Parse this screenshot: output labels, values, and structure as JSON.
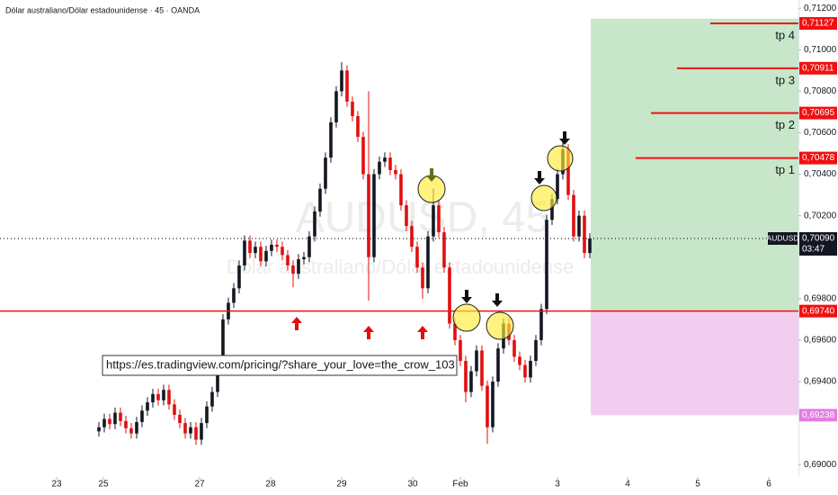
{
  "chart_data": {
    "type": "candlestick",
    "title": "Dólar australiano/Dólar estadounidense · 45 · OANDA",
    "watermark": "AUDUSD, 45",
    "watermark_subtitle": "Dólar australiano/Dólar estadounidense",
    "annotation": "https://es.tradingview.com/pricing/?share_your_love=the_crow_103",
    "up_color": "#131722",
    "down_color": "#e01010",
    "ylim": [
      0.6894,
      0.7124
    ],
    "yticks": [
      {
        "value": 0.712,
        "label": "0,71200"
      },
      {
        "value": 0.71,
        "label": "0,71000"
      },
      {
        "value": 0.708,
        "label": "0,70800"
      },
      {
        "value": 0.706,
        "label": "0,70600"
      },
      {
        "value": 0.704,
        "label": "0,70400"
      },
      {
        "value": 0.702,
        "label": "0,70200"
      },
      {
        "value": 0.698,
        "label": "0,69800"
      },
      {
        "value": 0.696,
        "label": "0,69600"
      },
      {
        "value": 0.694,
        "label": "0,69400"
      },
      {
        "value": 0.69,
        "label": "0,69000"
      }
    ],
    "xlim": [
      -18.33,
      129.67
    ],
    "xticks": [
      {
        "value": -7.83,
        "label": "23"
      },
      {
        "value": 0.83,
        "label": "25"
      },
      {
        "value": 18.67,
        "label": "27"
      },
      {
        "value": 31.83,
        "label": "28"
      },
      {
        "value": 45,
        "label": "29"
      },
      {
        "value": 58.17,
        "label": "30"
      },
      {
        "value": 67,
        "label": "Feb"
      },
      {
        "value": 85,
        "label": "3"
      },
      {
        "value": 98,
        "label": "4"
      },
      {
        "value": 111,
        "label": "5"
      },
      {
        "value": 124.17,
        "label": "6"
      }
    ],
    "candles": [
      [
        0.6916,
        0.69205,
        0.69135,
        0.6918
      ],
      [
        0.6918,
        0.69245,
        0.69155,
        0.6922
      ],
      [
        0.6922,
        0.69245,
        0.6917,
        0.69195
      ],
      [
        0.69195,
        0.69275,
        0.6917,
        0.6925
      ],
      [
        0.6925,
        0.69275,
        0.69185,
        0.6921
      ],
      [
        0.6921,
        0.69235,
        0.6915,
        0.69175
      ],
      [
        0.69175,
        0.692,
        0.69125,
        0.6915
      ],
      [
        0.6915,
        0.6923,
        0.69125,
        0.69205
      ],
      [
        0.69205,
        0.69285,
        0.6918,
        0.6926
      ],
      [
        0.6926,
        0.69325,
        0.69235,
        0.693
      ],
      [
        0.693,
        0.69365,
        0.69275,
        0.6934
      ],
      [
        0.6934,
        0.69365,
        0.69285,
        0.6931
      ],
      [
        0.6931,
        0.69385,
        0.69285,
        0.6936
      ],
      [
        0.6936,
        0.69385,
        0.69265,
        0.6929
      ],
      [
        0.6929,
        0.69315,
        0.69215,
        0.6924
      ],
      [
        0.6924,
        0.69265,
        0.69175,
        0.692
      ],
      [
        0.692,
        0.69225,
        0.69125,
        0.6915
      ],
      [
        0.6915,
        0.69205,
        0.69125,
        0.6918
      ],
      [
        0.6918,
        0.69205,
        0.69095,
        0.6912
      ],
      [
        0.6912,
        0.69225,
        0.69095,
        0.692
      ],
      [
        0.692,
        0.69305,
        0.69175,
        0.6928
      ],
      [
        0.6928,
        0.69375,
        0.69255,
        0.6935
      ],
      [
        0.6935,
        0.69505,
        0.69325,
        0.6948
      ],
      [
        0.6948,
        0.69725,
        0.69455,
        0.697
      ],
      [
        0.697,
        0.69805,
        0.69675,
        0.6978
      ],
      [
        0.6978,
        0.69875,
        0.69755,
        0.6985
      ],
      [
        0.6985,
        0.69985,
        0.69825,
        0.6996
      ],
      [
        0.6996,
        0.70105,
        0.69935,
        0.7008
      ],
      [
        0.7008,
        0.70105,
        0.69995,
        0.7002
      ],
      [
        0.7002,
        0.70075,
        0.69995,
        0.7005
      ],
      [
        0.7005,
        0.70075,
        0.69955,
        0.6998
      ],
      [
        0.6998,
        0.70055,
        0.69955,
        0.7003
      ],
      [
        0.7003,
        0.70085,
        0.70005,
        0.7006
      ],
      [
        0.7006,
        0.70085,
        0.70025,
        0.7005
      ],
      [
        0.7005,
        0.70075,
        0.69985,
        0.7001
      ],
      [
        0.7001,
        0.70035,
        0.69935,
        0.6996
      ],
      [
        0.6996,
        0.69985,
        0.69855,
        0.6992
      ],
      [
        0.6992,
        0.70015,
        0.69895,
        0.6999
      ],
      [
        0.6999,
        0.70025,
        0.69965,
        0.7
      ],
      [
        0.7,
        0.70125,
        0.69975,
        0.701
      ],
      [
        0.701,
        0.70245,
        0.70075,
        0.7022
      ],
      [
        0.7022,
        0.70355,
        0.70195,
        0.7033
      ],
      [
        0.7033,
        0.70505,
        0.70305,
        0.7048
      ],
      [
        0.7048,
        0.70675,
        0.70455,
        0.7065
      ],
      [
        0.7065,
        0.70825,
        0.70625,
        0.708
      ],
      [
        0.708,
        0.7094,
        0.70775,
        0.709
      ],
      [
        0.709,
        0.70925,
        0.70725,
        0.7075
      ],
      [
        0.7075,
        0.70775,
        0.70655,
        0.7068
      ],
      [
        0.7068,
        0.70705,
        0.70555,
        0.7058
      ],
      [
        0.7058,
        0.70605,
        0.70375,
        0.704
      ],
      [
        0.704,
        0.708,
        0.6979,
        0.7
      ],
      [
        0.7,
        0.70425,
        0.69975,
        0.704
      ],
      [
        0.704,
        0.70485,
        0.70375,
        0.7046
      ],
      [
        0.7046,
        0.70505,
        0.70435,
        0.7048
      ],
      [
        0.7048,
        0.70505,
        0.70395,
        0.7042
      ],
      [
        0.7042,
        0.70445,
        0.70375,
        0.704
      ],
      [
        0.704,
        0.70425,
        0.70225,
        0.7025
      ],
      [
        0.7025,
        0.70275,
        0.70125,
        0.7015
      ],
      [
        0.7015,
        0.70175,
        0.70025,
        0.7005
      ],
      [
        0.7005,
        0.70075,
        0.69925,
        0.6995
      ],
      [
        0.6995,
        0.69975,
        0.698,
        0.6985
      ],
      [
        0.6985,
        0.70125,
        0.69825,
        0.701
      ],
      [
        0.701,
        0.7033,
        0.70075,
        0.7025
      ],
      [
        0.7025,
        0.70275,
        0.70095,
        0.7012
      ],
      [
        0.7012,
        0.70145,
        0.69925,
        0.6995
      ],
      [
        0.6995,
        0.69975,
        0.69655,
        0.6968
      ],
      [
        0.6968,
        0.69705,
        0.69575,
        0.696
      ],
      [
        0.696,
        0.69625,
        0.69475,
        0.695
      ],
      [
        0.695,
        0.69525,
        0.693,
        0.6935
      ],
      [
        0.6935,
        0.69475,
        0.69325,
        0.6945
      ],
      [
        0.6945,
        0.69575,
        0.69425,
        0.6955
      ],
      [
        0.6955,
        0.69575,
        0.69355,
        0.6938
      ],
      [
        0.6938,
        0.69405,
        0.691,
        0.6918
      ],
      [
        0.6918,
        0.69425,
        0.69155,
        0.694
      ],
      [
        0.694,
        0.69585,
        0.69375,
        0.6956
      ],
      [
        0.6956,
        0.69705,
        0.69535,
        0.6968
      ],
      [
        0.6968,
        0.69705,
        0.69575,
        0.696
      ],
      [
        0.696,
        0.69625,
        0.69495,
        0.6952
      ],
      [
        0.6952,
        0.69545,
        0.69455,
        0.6948
      ],
      [
        0.6948,
        0.69505,
        0.69395,
        0.6942
      ],
      [
        0.6942,
        0.69525,
        0.69395,
        0.695
      ],
      [
        0.695,
        0.69625,
        0.69475,
        0.696
      ],
      [
        0.696,
        0.69775,
        0.69575,
        0.6975
      ],
      [
        0.6975,
        0.70205,
        0.69725,
        0.7018
      ],
      [
        0.7018,
        0.70305,
        0.70155,
        0.7028
      ],
      [
        0.7028,
        0.70425,
        0.70255,
        0.704
      ],
      [
        0.704,
        0.7056,
        0.70375,
        0.7052
      ],
      [
        0.7052,
        0.70545,
        0.70275,
        0.703
      ],
      [
        0.703,
        0.70325,
        0.70075,
        0.701
      ],
      [
        0.701,
        0.70225,
        0.70075,
        0.702
      ],
      [
        0.702,
        0.70225,
        0.69995,
        0.7002
      ],
      [
        0.7002,
        0.70115,
        0.69995,
        0.7009
      ]
    ],
    "target_zone": {
      "top": 0.7115,
      "bottom": 0.6974,
      "color": "#c8e6c9"
    },
    "stop_zone": {
      "top": 0.6974,
      "bottom": 0.69238,
      "color": "#f3cdf0"
    },
    "levels": [
      {
        "name": "tp 4",
        "value": 0.71127,
        "label": "0,71127"
      },
      {
        "name": "tp 3",
        "value": 0.70911,
        "label": "0,70911"
      },
      {
        "name": "tp 2",
        "value": 0.70695,
        "label": "0,70695"
      },
      {
        "name": "tp 1",
        "value": 0.70478,
        "label": "0,70478"
      }
    ],
    "level_color": "#f01010",
    "entry": {
      "value": 0.6974,
      "label": "0,69740"
    },
    "stop": {
      "value": 0.69238,
      "label": "0,69238",
      "color": "#e07ee0"
    },
    "current": {
      "value": 0.7009,
      "label": "0,70090",
      "symbol": "AUDUSD",
      "countdown": "03:47"
    }
  }
}
